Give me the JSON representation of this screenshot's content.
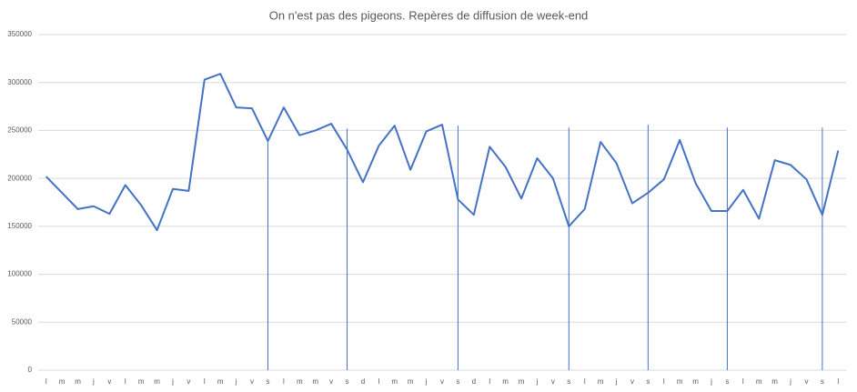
{
  "chart_data": {
    "type": "line",
    "title": "On n'est pas des pigeons. Repères de diffusion  de week-end",
    "categories": [
      "l",
      "m",
      "m",
      "j",
      "v",
      "l",
      "m",
      "m",
      "j",
      "v",
      "l",
      "m",
      "j",
      "v",
      "s",
      "l",
      "m",
      "m",
      "v",
      "s",
      "d",
      "l",
      "m",
      "m",
      "j",
      "v",
      "s",
      "d",
      "l",
      "m",
      "m",
      "j",
      "v",
      "s",
      "l",
      "m",
      "j",
      "v",
      "s",
      "l",
      "m",
      "m",
      "j",
      "s",
      "l",
      "m",
      "m",
      "j",
      "v",
      "s",
      "l"
    ],
    "values": [
      202000,
      185000,
      168000,
      171000,
      163000,
      193000,
      172000,
      146000,
      189000,
      187000,
      303000,
      309000,
      274000,
      273000,
      239000,
      274000,
      245000,
      250000,
      257000,
      230000,
      196000,
      234000,
      255000,
      209000,
      249000,
      256000,
      178000,
      162000,
      233000,
      212000,
      179000,
      221000,
      200000,
      150000,
      168000,
      238000,
      216000,
      174000,
      185000,
      199000,
      240000,
      195000,
      166000,
      166000,
      188000,
      158000,
      219000,
      214000,
      199000,
      162000,
      229000
    ],
    "markers": [
      null,
      null,
      null,
      null,
      null,
      null,
      null,
      null,
      null,
      null,
      null,
      null,
      null,
      null,
      240000,
      null,
      null,
      null,
      null,
      252000,
      null,
      null,
      null,
      null,
      null,
      null,
      255000,
      null,
      null,
      null,
      null,
      null,
      null,
      253000,
      null,
      null,
      null,
      null,
      256000,
      null,
      null,
      null,
      null,
      253000,
      null,
      null,
      null,
      null,
      null,
      253000,
      null
    ],
    "color": "#4472c4",
    "ylim": [
      0,
      350000
    ],
    "yticks": [
      0,
      50000,
      100000,
      150000,
      200000,
      250000,
      300000,
      350000
    ],
    "grid": true
  }
}
